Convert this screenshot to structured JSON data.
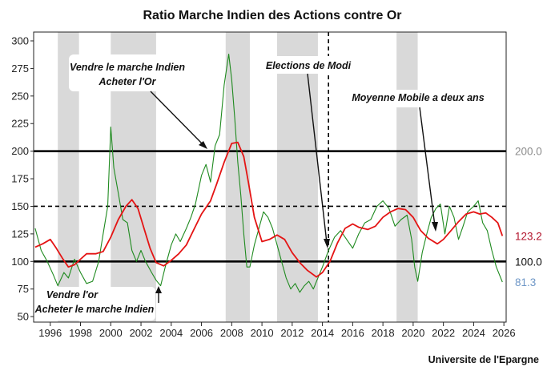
{
  "chart_data": {
    "type": "line",
    "title": "Ratio Marche Indien des Actions contre Or",
    "source": "Universite de l'Epargne",
    "xlim": [
      1994.9,
      2026.15
    ],
    "ylim": [
      45,
      308
    ],
    "x_ticks": [
      1996,
      1998,
      2000,
      2002,
      2004,
      2006,
      2008,
      2010,
      2012,
      2014,
      2016,
      2018,
      2020,
      2022,
      2024,
      2026
    ],
    "y_ticks": [
      50,
      75,
      100,
      125,
      150,
      175,
      200,
      225,
      250,
      275,
      300
    ],
    "recession_bands": [
      [
        1996.5,
        1997.9
      ],
      [
        2000.0,
        2003.0
      ],
      [
        2007.6,
        2009.2
      ],
      [
        2011.0,
        2013.7
      ],
      [
        2018.9,
        2020.3
      ]
    ],
    "horizontal_lines": [
      {
        "y": 200,
        "style": "solid",
        "label": "200.0",
        "color": "#8c8c8c"
      },
      {
        "y": 150,
        "style": "dashed"
      },
      {
        "y": 100,
        "style": "solid",
        "label": "100.0",
        "color": "#111111"
      }
    ],
    "vertical_lines": [
      {
        "x": 2014.4,
        "style": "dashed"
      }
    ],
    "series": [
      {
        "key": "ratio",
        "color": "#1f8a1f",
        "last_label": "81.3",
        "label_color": "#6e97c7",
        "points": [
          [
            1995.0,
            130
          ],
          [
            1995.4,
            110
          ],
          [
            1995.8,
            100
          ],
          [
            1996.2,
            88
          ],
          [
            1996.5,
            78
          ],
          [
            1996.9,
            90
          ],
          [
            1997.2,
            85
          ],
          [
            1997.6,
            102
          ],
          [
            1998.0,
            90
          ],
          [
            1998.4,
            80
          ],
          [
            1998.8,
            82
          ],
          [
            1999.2,
            100
          ],
          [
            1999.5,
            125
          ],
          [
            1999.8,
            150
          ],
          [
            2000.0,
            222
          ],
          [
            2000.2,
            185
          ],
          [
            2000.5,
            162
          ],
          [
            2000.8,
            138
          ],
          [
            2001.1,
            135
          ],
          [
            2001.4,
            110
          ],
          [
            2001.7,
            100
          ],
          [
            2002.0,
            110
          ],
          [
            2002.3,
            100
          ],
          [
            2002.7,
            90
          ],
          [
            2003.0,
            83
          ],
          [
            2003.3,
            78
          ],
          [
            2003.6,
            95
          ],
          [
            2004.0,
            115
          ],
          [
            2004.3,
            125
          ],
          [
            2004.6,
            118
          ],
          [
            2005.0,
            130
          ],
          [
            2005.3,
            140
          ],
          [
            2005.6,
            152
          ],
          [
            2006.0,
            178
          ],
          [
            2006.3,
            188
          ],
          [
            2006.6,
            172
          ],
          [
            2006.9,
            205
          ],
          [
            2007.2,
            215
          ],
          [
            2007.5,
            260
          ],
          [
            2007.8,
            288
          ],
          [
            2008.0,
            265
          ],
          [
            2008.2,
            230
          ],
          [
            2008.4,
            190
          ],
          [
            2008.6,
            160
          ],
          [
            2008.8,
            125
          ],
          [
            2009.0,
            95
          ],
          [
            2009.2,
            95
          ],
          [
            2009.5,
            115
          ],
          [
            2009.8,
            130
          ],
          [
            2010.1,
            145
          ],
          [
            2010.4,
            140
          ],
          [
            2010.7,
            130
          ],
          [
            2011.0,
            115
          ],
          [
            2011.3,
            100
          ],
          [
            2011.6,
            85
          ],
          [
            2011.9,
            75
          ],
          [
            2012.2,
            80
          ],
          [
            2012.5,
            72
          ],
          [
            2012.8,
            78
          ],
          [
            2013.1,
            82
          ],
          [
            2013.4,
            75
          ],
          [
            2013.7,
            85
          ],
          [
            2014.0,
            95
          ],
          [
            2014.4,
            110
          ],
          [
            2014.8,
            122
          ],
          [
            2015.2,
            128
          ],
          [
            2015.6,
            120
          ],
          [
            2016.0,
            112
          ],
          [
            2016.4,
            125
          ],
          [
            2016.8,
            135
          ],
          [
            2017.2,
            138
          ],
          [
            2017.6,
            150
          ],
          [
            2018.0,
            155
          ],
          [
            2018.4,
            148
          ],
          [
            2018.8,
            132
          ],
          [
            2019.2,
            138
          ],
          [
            2019.6,
            142
          ],
          [
            2019.9,
            120
          ],
          [
            2020.1,
            95
          ],
          [
            2020.3,
            82
          ],
          [
            2020.6,
            108
          ],
          [
            2020.9,
            125
          ],
          [
            2021.2,
            140
          ],
          [
            2021.5,
            148
          ],
          [
            2021.8,
            152
          ],
          [
            2022.1,
            125
          ],
          [
            2022.4,
            150
          ],
          [
            2022.7,
            140
          ],
          [
            2023.0,
            120
          ],
          [
            2023.3,
            132
          ],
          [
            2023.6,
            145
          ],
          [
            2024.0,
            150
          ],
          [
            2024.3,
            155
          ],
          [
            2024.6,
            135
          ],
          [
            2024.9,
            128
          ],
          [
            2025.2,
            110
          ],
          [
            2025.5,
            95
          ],
          [
            2025.9,
            81.3
          ]
        ]
      },
      {
        "key": "ma",
        "name": "Moyenne Mobile a deux ans",
        "color": "#e41414",
        "last_label": "123.2",
        "label_color": "#b2132b",
        "points": [
          [
            1995.0,
            113
          ],
          [
            1995.5,
            116
          ],
          [
            1996.0,
            120
          ],
          [
            1996.4,
            112
          ],
          [
            1996.8,
            103
          ],
          [
            1997.2,
            95
          ],
          [
            1997.6,
            97
          ],
          [
            1998.0,
            102
          ],
          [
            1998.4,
            107
          ],
          [
            1999.0,
            107
          ],
          [
            1999.5,
            109
          ],
          [
            2000.0,
            122
          ],
          [
            2000.5,
            138
          ],
          [
            2001.0,
            150
          ],
          [
            2001.4,
            156
          ],
          [
            2001.8,
            148
          ],
          [
            2002.2,
            130
          ],
          [
            2002.6,
            112
          ],
          [
            2003.0,
            99
          ],
          [
            2003.5,
            96
          ],
          [
            2004.0,
            101
          ],
          [
            2004.5,
            107
          ],
          [
            2005.0,
            115
          ],
          [
            2005.5,
            129
          ],
          [
            2006.0,
            143
          ],
          [
            2006.6,
            155
          ],
          [
            2007.0,
            170
          ],
          [
            2007.5,
            190
          ],
          [
            2008.0,
            207
          ],
          [
            2008.4,
            208
          ],
          [
            2008.8,
            195
          ],
          [
            2009.1,
            172
          ],
          [
            2009.5,
            140
          ],
          [
            2010.0,
            118
          ],
          [
            2010.5,
            120
          ],
          [
            2011.0,
            124
          ],
          [
            2011.5,
            120
          ],
          [
            2012.0,
            108
          ],
          [
            2012.5,
            99
          ],
          [
            2013.0,
            92
          ],
          [
            2013.6,
            86
          ],
          [
            2014.0,
            90
          ],
          [
            2014.5,
            100
          ],
          [
            2015.0,
            117
          ],
          [
            2015.5,
            130
          ],
          [
            2016.0,
            134
          ],
          [
            2016.4,
            131
          ],
          [
            2017.0,
            129
          ],
          [
            2017.5,
            132
          ],
          [
            2018.0,
            140
          ],
          [
            2018.5,
            145
          ],
          [
            2019.0,
            148
          ],
          [
            2019.5,
            147
          ],
          [
            2020.0,
            140
          ],
          [
            2020.5,
            128
          ],
          [
            2021.0,
            121
          ],
          [
            2021.6,
            116
          ],
          [
            2022.0,
            120
          ],
          [
            2022.5,
            128
          ],
          [
            2023.0,
            136
          ],
          [
            2023.5,
            143
          ],
          [
            2024.0,
            145
          ],
          [
            2024.4,
            143
          ],
          [
            2024.8,
            144
          ],
          [
            2025.2,
            140
          ],
          [
            2025.6,
            135
          ],
          [
            2025.9,
            123.2
          ]
        ]
      }
    ],
    "annotations": [
      {
        "lines": [
          "Vendre le marche Indien",
          "Acheter l'Or"
        ]
      },
      {
        "lines": [
          "Elections de Modi"
        ]
      },
      {
        "lines": [
          "Moyenne Mobile a deux ans"
        ]
      },
      {
        "lines": [
          "Vendre l'or",
          "Acheter le marche Indien"
        ]
      }
    ]
  }
}
